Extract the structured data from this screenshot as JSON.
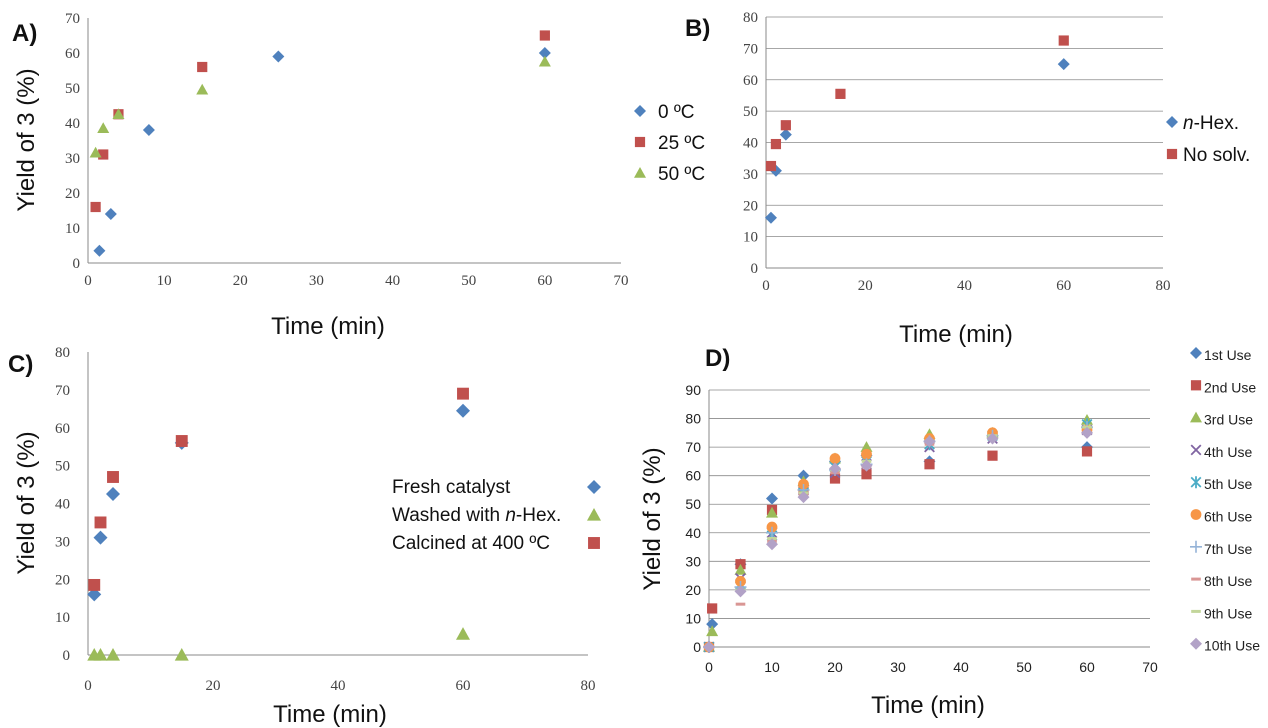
{
  "chart_data": [
    {
      "panel": "A)",
      "type": "scatter",
      "xlabel": "Time (min)",
      "ylabel": "Yield of 3 (%)",
      "xlim": [
        0,
        70
      ],
      "ylim": [
        0,
        70
      ],
      "xticks": [
        0,
        10,
        20,
        30,
        40,
        50,
        60,
        70
      ],
      "yticks": [
        0,
        10,
        20,
        30,
        40,
        50,
        60,
        70
      ],
      "grid": "none",
      "legend_position": "right",
      "series": [
        {
          "name": "0 ºC",
          "marker": "diamond",
          "color": "#4f81bd",
          "x": [
            1.5,
            3,
            8,
            25,
            60
          ],
          "y": [
            3.5,
            14,
            38,
            59,
            60
          ]
        },
        {
          "name": "25 ºC",
          "marker": "square",
          "color": "#c0504d",
          "x": [
            1,
            2,
            4,
            15,
            60
          ],
          "y": [
            16,
            31,
            42.5,
            56,
            65
          ]
        },
        {
          "name": "50 ºC",
          "marker": "triangle",
          "color": "#9bbb59",
          "x": [
            1,
            2,
            4,
            15,
            60
          ],
          "y": [
            31.5,
            38.5,
            42.5,
            49.5,
            57.5
          ]
        }
      ]
    },
    {
      "panel": "B)",
      "type": "scatter",
      "xlabel": "Time (min)",
      "ylabel": "",
      "xlim": [
        0,
        80
      ],
      "ylim": [
        0,
        80
      ],
      "xticks": [
        0,
        20,
        40,
        60,
        80
      ],
      "yticks": [
        0,
        10,
        20,
        30,
        40,
        50,
        60,
        70,
        80
      ],
      "grid": "horizontal",
      "legend_position": "right",
      "series": [
        {
          "name": "n-Hex.",
          "marker": "diamond",
          "color": "#4f81bd",
          "x": [
            1,
            2,
            4,
            60
          ],
          "y": [
            16,
            31,
            42.5,
            65
          ]
        },
        {
          "name": "No solv.",
          "marker": "square",
          "color": "#c0504d",
          "x": [
            1,
            2,
            4,
            15,
            60
          ],
          "y": [
            32.5,
            39.5,
            45.5,
            55.5,
            72.5
          ]
        }
      ]
    },
    {
      "panel": "C)",
      "type": "scatter",
      "xlabel": "Time (min)",
      "ylabel": "Yield of 3 (%)",
      "xlim": [
        0,
        80
      ],
      "ylim": [
        0,
        80
      ],
      "xticks": [
        0,
        20,
        40,
        60,
        80
      ],
      "yticks": [
        0,
        10,
        20,
        30,
        40,
        50,
        60,
        70,
        80
      ],
      "grid": "none",
      "legend_position": "inside-right",
      "series": [
        {
          "name": "Fresh catalyst",
          "marker": "diamond",
          "color": "#4f81bd",
          "x": [
            1,
            2,
            4,
            15,
            60
          ],
          "y": [
            16,
            31,
            42.5,
            56,
            64.5
          ]
        },
        {
          "name": "Washed with n-Hex.",
          "marker": "triangle",
          "color": "#9bbb59",
          "x": [
            1,
            2,
            4,
            15,
            60
          ],
          "y": [
            0,
            0,
            0,
            0,
            5.5
          ]
        },
        {
          "name": "Calcined at 400 ºC",
          "marker": "square",
          "color": "#c0504d",
          "x": [
            1,
            2,
            4,
            15,
            60
          ],
          "y": [
            18.5,
            35,
            47,
            56.5,
            69
          ]
        }
      ]
    },
    {
      "panel": "D)",
      "type": "scatter",
      "xlabel": "Time (min)",
      "ylabel": "Yield of 3 (%)",
      "xlim": [
        0,
        70
      ],
      "ylim": [
        0,
        90
      ],
      "xticks": [
        0,
        10,
        20,
        30,
        40,
        50,
        60,
        70
      ],
      "yticks": [
        0,
        10,
        20,
        30,
        40,
        50,
        60,
        70,
        80,
        90
      ],
      "grid": "horizontal",
      "legend_position": "right",
      "series": [
        {
          "name": "1st Use",
          "marker": "diamond",
          "color": "#4f81bd",
          "x": [
            0,
            0.5,
            5,
            10,
            15,
            20,
            25,
            35,
            45,
            60
          ],
          "y": [
            0,
            8,
            29,
            52,
            60,
            65,
            67,
            65,
            74,
            70
          ]
        },
        {
          "name": "2nd Use",
          "marker": "square",
          "color": "#c0504d",
          "x": [
            0,
            0.5,
            5,
            10,
            15,
            20,
            25,
            35,
            45,
            60
          ],
          "y": [
            0,
            13.5,
            29,
            48,
            55,
            59,
            60.5,
            64,
            67,
            68.5
          ]
        },
        {
          "name": "3rd Use",
          "marker": "triangle",
          "color": "#9bbb59",
          "x": [
            0,
            0.5,
            5,
            10,
            15,
            20,
            25,
            35,
            45,
            60
          ],
          "y": [
            0,
            5.5,
            27,
            47,
            58,
            66,
            70,
            74.5,
            75,
            79.5
          ]
        },
        {
          "name": "4th Use",
          "marker": "x",
          "color": "#8064a2",
          "x": [
            0,
            5,
            10,
            15,
            20,
            25,
            35,
            45,
            60
          ],
          "y": [
            0,
            24,
            40,
            55,
            61,
            64,
            70,
            73,
            76
          ]
        },
        {
          "name": "5th Use",
          "marker": "star",
          "color": "#4bacc6",
          "x": [
            0,
            5,
            10,
            15,
            20,
            25,
            35,
            45,
            60
          ],
          "y": [
            0,
            22,
            39,
            54,
            63,
            65,
            71,
            74,
            78
          ]
        },
        {
          "name": "6th Use",
          "marker": "circle",
          "color": "#f79646",
          "x": [
            0,
            5,
            10,
            15,
            20,
            25,
            35,
            45,
            60
          ],
          "y": [
            0,
            23,
            42,
            57,
            66,
            67.5,
            73,
            75,
            76
          ]
        },
        {
          "name": "7th Use",
          "marker": "plus",
          "color": "#95b3d7",
          "x": [
            0,
            5,
            10,
            15,
            20,
            25,
            35,
            45,
            60
          ],
          "y": [
            0,
            21,
            40,
            55,
            62,
            64,
            72,
            74,
            77
          ]
        },
        {
          "name": "8th Use",
          "marker": "dash",
          "color": "#d99694",
          "x": [
            0,
            5,
            10,
            15,
            20,
            25,
            35,
            45,
            60
          ],
          "y": [
            0,
            15,
            37,
            53,
            61,
            63,
            71,
            73,
            75
          ]
        },
        {
          "name": "9th Use",
          "marker": "dash",
          "color": "#c3d69b",
          "x": [
            0,
            5,
            10,
            15,
            20,
            25,
            35,
            45,
            60
          ],
          "y": [
            0,
            20,
            38,
            54,
            62,
            65,
            72,
            74,
            77
          ]
        },
        {
          "name": "10th Use",
          "marker": "diamond",
          "color": "#b2a2c7",
          "x": [
            0,
            5,
            10,
            15,
            20,
            25,
            35,
            45,
            60
          ],
          "y": [
            0,
            19.5,
            36,
            52.5,
            62.5,
            63.5,
            72,
            73,
            75
          ]
        }
      ]
    }
  ]
}
